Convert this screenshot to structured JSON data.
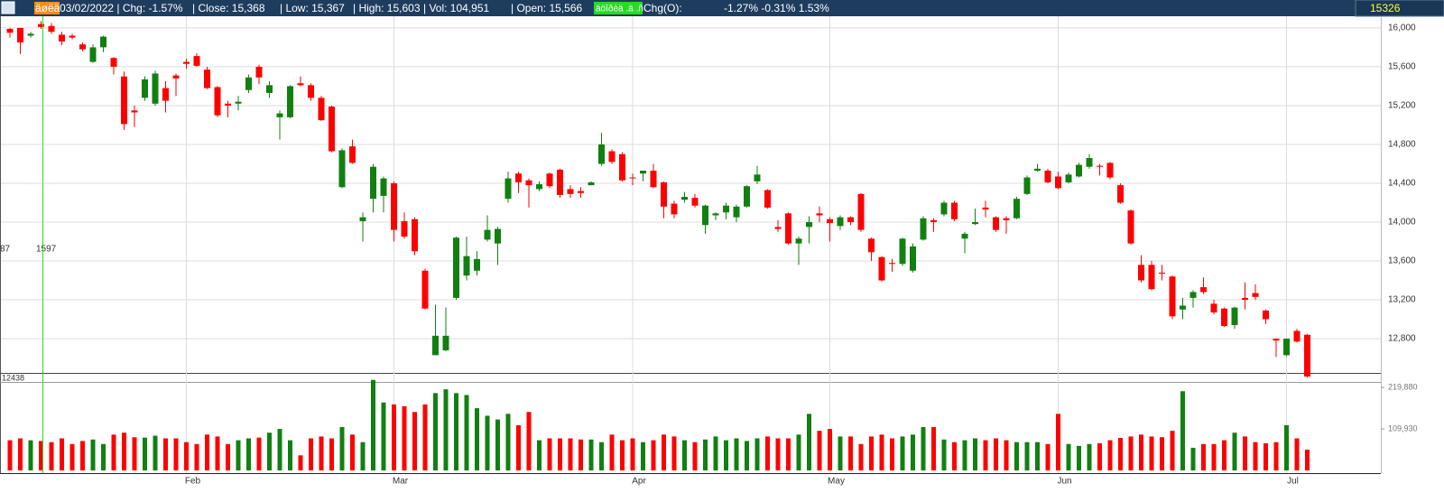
{
  "header": {
    "tag": "äøëä",
    "date_chg": "03/02/2022 | Chg: -1.57%",
    "close": "| Close: 15,368",
    "low": "| Low: 15,367",
    "high": "| High: 15,603",
    "vol": "| Vol: 104,951",
    "open": "| Open: 15,566",
    "tag2": "äöîðèä .ä .ñ",
    "chg_label": "Chg(O):",
    "chg_values": "-1.27% -0.31% 1.53%",
    "last": "15326"
  },
  "cursor": {
    "left": "87",
    "value": "1597",
    "low": "12438"
  },
  "chart_data": {
    "type": "candlestick",
    "categories": [
      null,
      null,
      null,
      null,
      null,
      null,
      null,
      null,
      null,
      null,
      null,
      null,
      null,
      null,
      null,
      null,
      null,
      "Feb",
      null,
      null,
      null,
      null,
      null,
      null,
      null,
      null,
      null,
      null,
      null,
      null,
      null,
      null,
      null,
      null,
      null,
      null,
      null,
      "Mar",
      null,
      null,
      null,
      null,
      null,
      null,
      null,
      null,
      null,
      null,
      null,
      null,
      null,
      null,
      null,
      null,
      null,
      null,
      null,
      null,
      null,
      null,
      "Apr",
      null,
      null,
      null,
      null,
      null,
      null,
      null,
      null,
      null,
      null,
      null,
      null,
      null,
      null,
      null,
      null,
      null,
      null,
      "May",
      null,
      null,
      null,
      null,
      null,
      null,
      null,
      null,
      null,
      null,
      null,
      null,
      null,
      null,
      null,
      null,
      null,
      null,
      null,
      null,
      null,
      "Jun",
      null,
      null,
      null,
      null,
      null,
      null,
      null,
      null,
      null,
      null,
      null,
      null,
      null,
      null,
      null,
      null,
      null,
      null,
      null,
      null,
      null,
      "Jul",
      null,
      null
    ],
    "open": [
      15990,
      16000,
      15920,
      16040,
      16020,
      15930,
      15920,
      15830,
      15650,
      15800,
      15690,
      15500,
      15150,
      15280,
      15220,
      15380,
      15510,
      15650,
      15710,
      15570,
      15390,
      15220,
      15220,
      15360,
      15600,
      15330,
      15080,
      15080,
      15430,
      15410,
      15280,
      15190,
      14360,
      14780,
      14010,
      14240,
      14270,
      14400,
      14010,
      14030,
      13500,
      12630,
      12680,
      13220,
      13450,
      13500,
      13820,
      13780,
      14240,
      14500,
      14430,
      14340,
      14500,
      14540,
      14340,
      14320,
      14380,
      14600,
      14730,
      14700,
      14460,
      14500,
      14530,
      14410,
      14190,
      14230,
      14250,
      13970,
      14070,
      14100,
      14050,
      14160,
      14420,
      14330,
      13950,
      14090,
      13780,
      13950,
      14090,
      14030,
      13960,
      14050,
      14290,
      13830,
      13640,
      13580,
      13570,
      13500,
      13820,
      14020,
      14080,
      14200,
      13830,
      13980,
      14150,
      14050,
      14040,
      14040,
      14290,
      14530,
      14530,
      14470,
      14410,
      14470,
      14570,
      14580,
      14610,
      14380,
      14120,
      13560,
      13560,
      13480,
      13440,
      13100,
      13220,
      13330,
      13160,
      13110,
      12940,
      13220,
      13270,
      13090,
      12800,
      12630,
      12880,
      12840
    ],
    "close": [
      15950,
      15850,
      15940,
      16010,
      15960,
      15860,
      15900,
      15780,
      15800,
      15910,
      15600,
      15010,
      15130,
      15470,
      15530,
      15250,
      15480,
      15630,
      15610,
      15380,
      15100,
      15200,
      15240,
      15490,
      15490,
      15410,
      15120,
      15400,
      15410,
      15280,
      15050,
      14730,
      14740,
      14610,
      14050,
      14570,
      14450,
      13920,
      13850,
      13700,
      13110,
      12830,
      12830,
      13840,
      13650,
      13620,
      13920,
      13930,
      14450,
      14410,
      14380,
      14390,
      14370,
      14280,
      14290,
      14300,
      14410,
      14800,
      14620,
      14430,
      14450,
      14530,
      14360,
      14160,
      14080,
      14260,
      14170,
      14170,
      14090,
      14170,
      14160,
      14370,
      14490,
      14150,
      13930,
      13780,
      13830,
      14000,
      14070,
      13990,
      14050,
      14000,
      13920,
      13690,
      13400,
      13570,
      13830,
      13750,
      14040,
      14000,
      14200,
      14030,
      13880,
      14000,
      14130,
      13920,
      14020,
      14240,
      14460,
      14550,
      14410,
      14350,
      14490,
      14590,
      14660,
      14570,
      14460,
      14200,
      13780,
      13400,
      13310,
      13470,
      13030,
      13140,
      13280,
      13280,
      13070,
      12930,
      13120,
      13200,
      13230,
      13000,
      12780,
      12800,
      12770,
      12410
    ],
    "high": [
      16000,
      16000,
      15960,
      16070,
      16050,
      15960,
      15940,
      15850,
      15830,
      15920,
      15700,
      15550,
      15200,
      15500,
      15560,
      15450,
      15530,
      15680,
      15740,
      15600,
      15400,
      15250,
      15300,
      15520,
      15620,
      15450,
      15150,
      15410,
      15500,
      15430,
      15300,
      15200,
      14760,
      14850,
      14100,
      14600,
      14470,
      14420,
      14100,
      14050,
      13520,
      13150,
      13120,
      13850,
      13850,
      13700,
      14070,
      13950,
      14520,
      14520,
      14450,
      14420,
      14510,
      14550,
      14380,
      14360,
      14420,
      14920,
      14750,
      14720,
      14500,
      14530,
      14600,
      14420,
      14220,
      14310,
      14290,
      14180,
      14100,
      14200,
      14180,
      14380,
      14580,
      14340,
      14020,
      14100,
      13850,
      14060,
      14160,
      14050,
      14070,
      14060,
      14300,
      13840,
      13650,
      13620,
      13840,
      13780,
      14060,
      14040,
      14220,
      14220,
      13900,
      14140,
      14220,
      14060,
      14060,
      14260,
      14480,
      14600,
      14550,
      14520,
      14510,
      14610,
      14700,
      14600,
      14620,
      14400,
      14130,
      13660,
      13600,
      13560,
      13450,
      13220,
      13300,
      13430,
      13200,
      13120,
      13130,
      13380,
      13360,
      13100,
      12800,
      12800,
      12900,
      12850
    ],
    "low": [
      15900,
      15730,
      15900,
      15990,
      15940,
      15820,
      15880,
      15760,
      15640,
      15750,
      15520,
      14950,
      14980,
      15250,
      15200,
      15130,
      15300,
      15580,
      15600,
      15370,
      15080,
      15080,
      15150,
      15330,
      15420,
      15280,
      14850,
      15070,
      15400,
      15250,
      15040,
      14720,
      14350,
      14600,
      13800,
      14100,
      14100,
      13800,
      13830,
      13660,
      13100,
      12630,
      12670,
      13200,
      13400,
      13450,
      13800,
      13560,
      14200,
      14300,
      14150,
      14320,
      14350,
      14250,
      14250,
      14250,
      14380,
      14580,
      14600,
      14420,
      14380,
      14420,
      14350,
      14040,
      14040,
      14200,
      14150,
      13880,
      14020,
      14030,
      14000,
      14150,
      14390,
      14140,
      13900,
      13770,
      13560,
      13780,
      14000,
      13800,
      13920,
      13970,
      13900,
      13600,
      13390,
      13490,
      13550,
      13480,
      13810,
      13900,
      14060,
      14010,
      13680,
      13970,
      14050,
      13900,
      13880,
      14030,
      14280,
      14520,
      14400,
      14340,
      14400,
      14460,
      14550,
      14480,
      14440,
      14190,
      13770,
      13380,
      13300,
      13400,
      13000,
      13000,
      13120,
      13260,
      13050,
      12920,
      12900,
      13100,
      13200,
      12950,
      12610,
      12620,
      12760,
      12400
    ],
    "volume": [
      80000,
      85000,
      80000,
      78000,
      75000,
      85000,
      70000,
      78000,
      82000,
      70000,
      95000,
      100000,
      88000,
      87000,
      92000,
      85000,
      85000,
      75000,
      70000,
      95000,
      90000,
      70000,
      80000,
      85000,
      87000,
      100000,
      110000,
      80000,
      40000,
      85000,
      90000,
      85000,
      115000,
      95000,
      75000,
      240000,
      180000,
      175000,
      170000,
      155000,
      175000,
      205000,
      215000,
      205000,
      200000,
      165000,
      145000,
      135000,
      150000,
      120000,
      155000,
      80000,
      85000,
      85000,
      85000,
      82000,
      82000,
      75000,
      95000,
      80000,
      85000,
      75000,
      80000,
      95000,
      90000,
      80000,
      75000,
      82000,
      90000,
      80000,
      85000,
      78000,
      85000,
      90000,
      85000,
      85000,
      95000,
      150000,
      105000,
      110000,
      90000,
      90000,
      70000,
      90000,
      95000,
      85000,
      90000,
      95000,
      115000,
      115000,
      82000,
      75000,
      80000,
      85000,
      80000,
      85000,
      80000,
      75000,
      75000,
      75000,
      70000,
      150000,
      70000,
      65000,
      70000,
      72000,
      80000,
      86000,
      90000,
      95000,
      90000,
      88000,
      105000,
      210000,
      60000,
      70000,
      70000,
      80000,
      100000,
      90000,
      75000,
      72000,
      75000,
      120000,
      85000,
      55000
    ],
    "up_color": "#118011",
    "down_color": "#ff0000",
    "ylim": [
      12438,
      16120
    ],
    "yticks": [
      {
        "value": 12800,
        "label": "12,800"
      },
      {
        "value": 13200,
        "label": "13,200"
      },
      {
        "value": 13600,
        "label": "13,600"
      },
      {
        "value": 14000,
        "label": "14,000"
      },
      {
        "value": 14400,
        "label": "14,400"
      },
      {
        "value": 14800,
        "label": "14,800"
      },
      {
        "value": 15200,
        "label": "15,200"
      },
      {
        "value": 15600,
        "label": "15,600"
      },
      {
        "value": 16000,
        "label": "16,000"
      }
    ],
    "y2lim": [
      0,
      234600
    ],
    "y2ticks": [
      {
        "value": 109930,
        "label": "109,930"
      },
      {
        "value": 219880,
        "label": "219,880"
      }
    ],
    "grid": true
  }
}
